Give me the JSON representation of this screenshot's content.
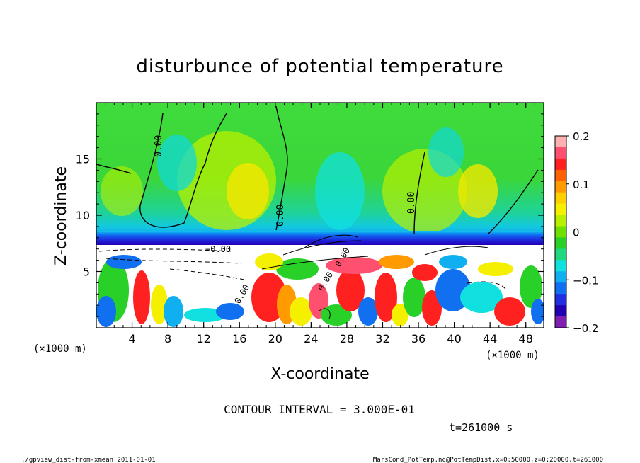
{
  "chart_data": {
    "type": "heatmap",
    "title": "disturbunce of potential temperature",
    "xlabel": "X-coordinate",
    "ylabel": "Z-coordinate",
    "x_unit": "(×1000 m)",
    "y_unit": "(×1000 m)",
    "xlim": [
      0,
      50
    ],
    "ylim": [
      0,
      20
    ],
    "x_ticks": [
      4,
      8,
      12,
      16,
      20,
      24,
      28,
      32,
      36,
      40,
      44,
      48
    ],
    "y_ticks": [
      5,
      10,
      15
    ],
    "colorbar": {
      "min": -0.2,
      "max": 0.2,
      "ticks": [
        "0.2",
        "0.1",
        "0",
        "−0.1",
        "−0.2"
      ],
      "colors": [
        "#ffb0b0",
        "#ff5070",
        "#ff2020",
        "#ff6000",
        "#ff9a00",
        "#ffd000",
        "#f4f000",
        "#b8f000",
        "#70e000",
        "#28d028",
        "#20d880",
        "#10e0e0",
        "#10b0f0",
        "#1070f0",
        "#2030e0",
        "#2000b0",
        "#8020b0"
      ]
    },
    "contour_labels": [
      "0.00",
      "0.00",
      "0.00",
      "0.00",
      "−0.00",
      "0.00",
      "0.00"
    ],
    "grid": false,
    "legend": "colorbar right"
  },
  "annotations": {
    "contour_interval": "CONTOUR INTERVAL = 3.000E-01",
    "time": "t=261000 s"
  },
  "footer": {
    "left": "./gpview_dist-from-xmean  2011-01-01",
    "right": "MarsCond_PotTemp.nc@PotTempDist,x=0:50000,z=0:20000,t=261000"
  }
}
